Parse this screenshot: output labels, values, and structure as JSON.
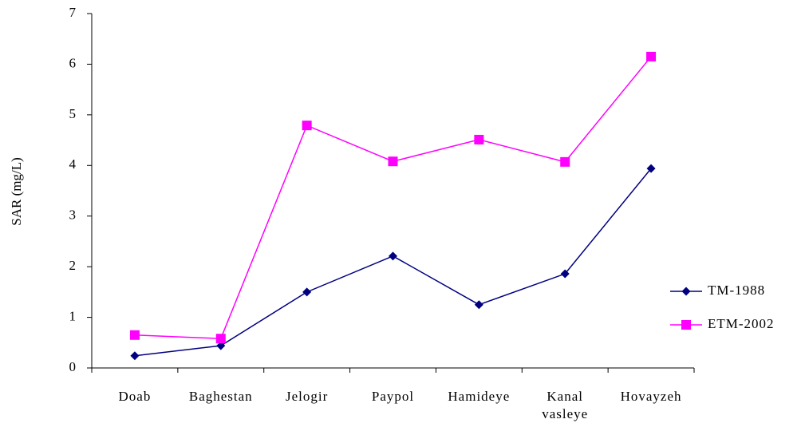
{
  "chart_data": {
    "type": "line",
    "y_label": "SAR (mg/L)",
    "categories": [
      "Doab",
      "Baghestan",
      "Jelogir",
      "Paypol",
      "Hamideye",
      "Kanal\nvasleye",
      "Hovayzeh"
    ],
    "series": [
      {
        "name": "TM-1988",
        "color": "#000080",
        "marker": "diamond",
        "values": [
          0.24,
          0.44,
          1.5,
          2.21,
          1.25,
          1.86,
          3.94
        ]
      },
      {
        "name": "ETM-2002",
        "color": "#ff00ff",
        "marker": "square",
        "values": [
          0.65,
          0.58,
          4.79,
          4.08,
          4.51,
          4.07,
          6.15
        ]
      }
    ],
    "ylim": [
      0,
      7
    ],
    "yticks": [
      0,
      1,
      2,
      3,
      4,
      5,
      6,
      7
    ],
    "grid": false,
    "legend": "right"
  }
}
